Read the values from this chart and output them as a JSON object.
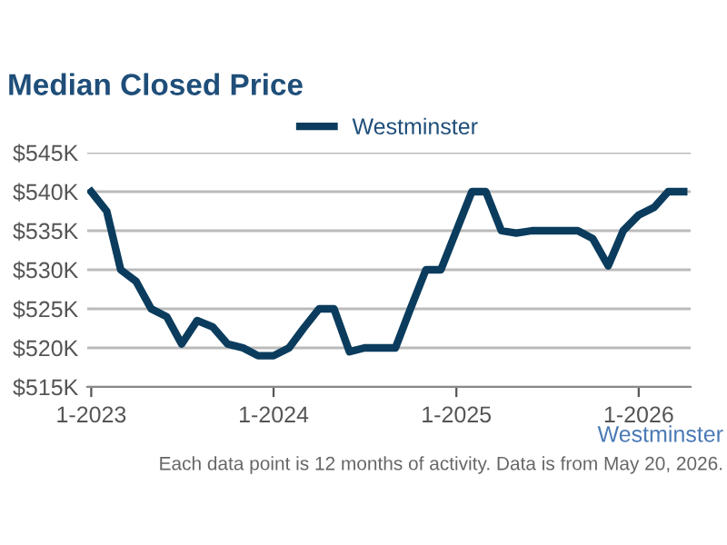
{
  "chart_data": {
    "type": "line",
    "title": "Median Closed Price",
    "x": [
      "2023-01",
      "2023-02",
      "2023-03",
      "2023-04",
      "2023-05",
      "2023-06",
      "2023-07",
      "2023-08",
      "2023-09",
      "2023-10",
      "2023-11",
      "2023-12",
      "2024-01",
      "2024-02",
      "2024-03",
      "2024-04",
      "2024-05",
      "2024-06",
      "2024-07",
      "2024-08",
      "2024-09",
      "2024-10",
      "2024-11",
      "2024-12",
      "2025-01",
      "2025-02",
      "2025-03",
      "2025-04",
      "2025-05",
      "2025-06",
      "2025-07",
      "2025-08",
      "2025-09",
      "2025-10",
      "2025-11",
      "2025-12",
      "2026-01",
      "2026-02",
      "2026-03",
      "2026-04"
    ],
    "series": [
      {
        "name": "Westminster",
        "color": "#0b3c5d",
        "values": [
          540000,
          537500,
          530000,
          528500,
          525000,
          524000,
          520500,
          523500,
          522700,
          520500,
          520000,
          519000,
          519000,
          520000,
          522500,
          525000,
          525000,
          519500,
          520000,
          520000,
          520000,
          525000,
          530000,
          530000,
          535000,
          540000,
          540000,
          535000,
          534700,
          535000,
          535000,
          535000,
          535000,
          534000,
          530500,
          535000,
          537000,
          538000,
          540000,
          540000
        ]
      }
    ],
    "xlim": [
      "2022-12-24",
      "2026-04-15"
    ],
    "xticks": [
      {
        "value": "2023-01-01",
        "label": "1-2023"
      },
      {
        "value": "2024-01-01",
        "label": "1-2024"
      },
      {
        "value": "2025-01-01",
        "label": "1-2025"
      },
      {
        "value": "2026-01-01",
        "label": "1-2026"
      }
    ],
    "ylim": [
      515000,
      545000
    ],
    "yticks": [
      {
        "value": 515000,
        "label": "$515K"
      },
      {
        "value": 520000,
        "label": "$520K"
      },
      {
        "value": 525000,
        "label": "$525K"
      },
      {
        "value": 530000,
        "label": "$530K"
      },
      {
        "value": 535000,
        "label": "$535K"
      },
      {
        "value": 540000,
        "label": "$540K"
      },
      {
        "value": 545000,
        "label": "$545K"
      }
    ],
    "grid": "y",
    "legend": "top",
    "marker": "none",
    "line_style": "solid",
    "annotations": [
      "Westminster",
      "Each data point is 12 months of activity. Data is from May 20, 2026."
    ]
  }
}
